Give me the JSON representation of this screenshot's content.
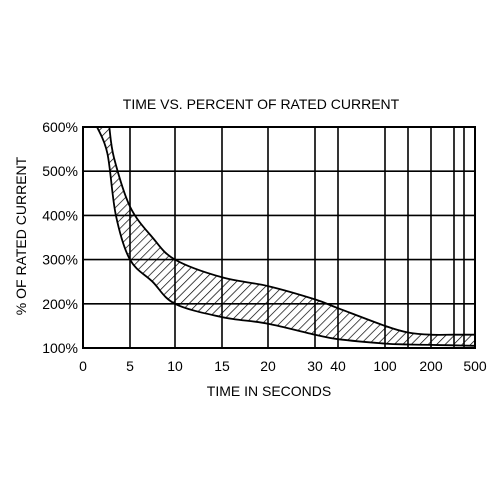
{
  "chart_data": {
    "type": "area",
    "title": "TIME VS. PERCENT OF RATED CURRENT",
    "xlabel": "TIME IN SECONDS",
    "ylabel": "% OF RATED CURRENT",
    "x_ticks": [
      "0",
      "5",
      "10",
      "15",
      "20",
      "30",
      "40",
      "100",
      "200",
      "500"
    ],
    "y_ticks": [
      "100%",
      "200%",
      "300%",
      "400%",
      "500%",
      "600%"
    ],
    "ylim": [
      100,
      600
    ],
    "grid": true,
    "series": [
      {
        "name": "",
        "x": [
          1.5,
          2.6,
          3.5,
          5,
          7.5,
          10,
          15,
          20,
          30,
          40,
          100,
          150,
          200,
          300,
          500
        ],
        "values": [
          600,
          540,
          400,
          300,
          250,
          200,
          170,
          155,
          130,
          120,
          110,
          108,
          107,
          106,
          105
        ]
      },
      {
        "name": "",
        "x": [
          2.8,
          3.3,
          5,
          7.5,
          10,
          15,
          20,
          30,
          40,
          100,
          150,
          200,
          300,
          500
        ],
        "values": [
          600,
          530,
          420,
          350,
          300,
          260,
          240,
          210,
          190,
          150,
          135,
          130,
          130,
          130
        ]
      }
    ]
  }
}
